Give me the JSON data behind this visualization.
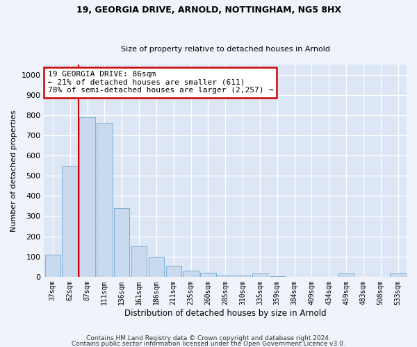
{
  "title1": "19, GEORGIA DRIVE, ARNOLD, NOTTINGHAM, NG5 8HX",
  "title2": "Size of property relative to detached houses in Arnold",
  "xlabel": "Distribution of detached houses by size in Arnold",
  "ylabel": "Number of detached properties",
  "bar_color": "#c9d9ee",
  "bar_edge_color": "#7aafd4",
  "background_color": "#dce6f5",
  "grid_color": "#ffffff",
  "fig_bg_color": "#f0f4fa",
  "categories": [
    "37sqm",
    "62sqm",
    "87sqm",
    "111sqm",
    "136sqm",
    "161sqm",
    "186sqm",
    "211sqm",
    "235sqm",
    "260sqm",
    "285sqm",
    "310sqm",
    "335sqm",
    "359sqm",
    "384sqm",
    "409sqm",
    "434sqm",
    "459sqm",
    "483sqm",
    "508sqm",
    "533sqm"
  ],
  "values": [
    110,
    550,
    790,
    760,
    340,
    150,
    100,
    55,
    30,
    20,
    5,
    5,
    15,
    3,
    0,
    0,
    0,
    15,
    0,
    0,
    15
  ],
  "ylim": [
    0,
    1050
  ],
  "yticks": [
    0,
    100,
    200,
    300,
    400,
    500,
    600,
    700,
    800,
    900,
    1000
  ],
  "red_line_index": 2,
  "annotation_text": "19 GEORGIA DRIVE: 86sqm\n← 21% of detached houses are smaller (611)\n78% of semi-detached houses are larger (2,257) →",
  "annotation_box_color": "#ffffff",
  "annotation_border_color": "#cc0000",
  "footer1": "Contains HM Land Registry data © Crown copyright and database right 2024.",
  "footer2": "Contains public sector information licensed under the Open Government Licence v3.0."
}
